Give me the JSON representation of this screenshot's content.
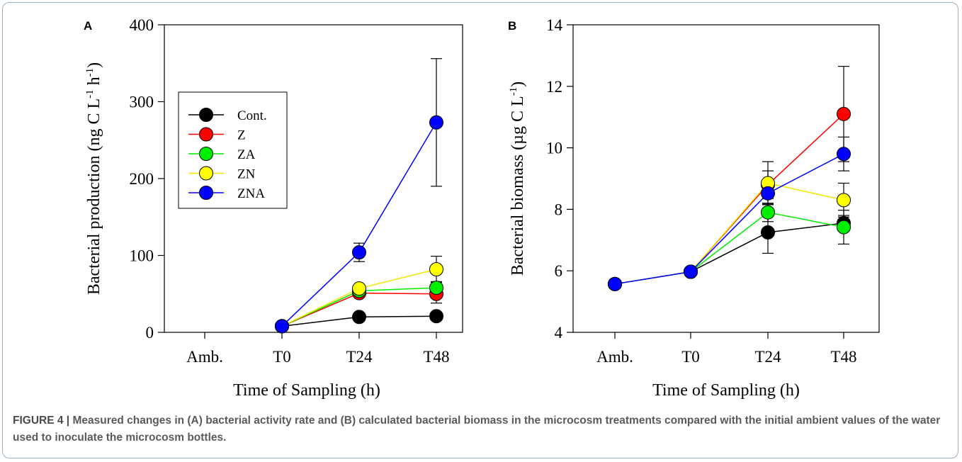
{
  "figure": {
    "caption_label": "FIGURE 4 |",
    "caption_text": "Measured changes in (A) bacterial activity rate and (B) calculated bacterial biomass in the microcosm treatments compared with the initial ambient values of the water used to inoculate the microcosm bottles."
  },
  "chart_data": [
    {
      "panel": "A",
      "type": "line",
      "categories": [
        "Amb.",
        "T0",
        "T24",
        "T48"
      ],
      "xlabel": "Time of Sampling (h)",
      "ylabel": "Bacterial production (ng C L-1 h-1)",
      "ylim": [
        0,
        400
      ],
      "yticks": [
        0,
        100,
        200,
        300,
        400
      ],
      "legend": "top-left",
      "series": [
        {
          "name": "Cont.",
          "color": "#000000",
          "values": [
            null,
            8,
            20,
            21
          ],
          "err": [
            null,
            0,
            3,
            3
          ]
        },
        {
          "name": "Z",
          "color": "#ff0000",
          "values": [
            null,
            8,
            51,
            50
          ],
          "err": [
            null,
            0,
            3,
            12
          ]
        },
        {
          "name": "ZA",
          "color": "#00ee00",
          "values": [
            null,
            8,
            54,
            58
          ],
          "err": [
            null,
            0,
            3,
            8
          ]
        },
        {
          "name": "ZN",
          "color": "#ffff00",
          "values": [
            null,
            8,
            57,
            82
          ],
          "err": [
            null,
            0,
            3,
            17
          ]
        },
        {
          "name": "ZNA",
          "color": "#0000ff",
          "values": [
            null,
            8,
            104,
            273
          ],
          "err": [
            null,
            0,
            12,
            83
          ]
        }
      ]
    },
    {
      "panel": "B",
      "type": "line",
      "categories": [
        "Amb.",
        "T0",
        "T24",
        "T48"
      ],
      "xlabel": "Time of Sampling (h)",
      "ylabel": "Bacterial biomass (µg C L-1)",
      "ylim": [
        4,
        14
      ],
      "yticks": [
        4,
        6,
        8,
        10,
        12,
        14
      ],
      "series": [
        {
          "name": "Cont.",
          "color": "#000000",
          "values": [
            5.57,
            5.97,
            7.25,
            7.55
          ],
          "err": [
            0,
            0,
            0.68,
            0.25
          ]
        },
        {
          "name": "Z",
          "color": "#ff0000",
          "values": [
            5.57,
            5.97,
            8.8,
            11.1
          ],
          "err": [
            0,
            0,
            0.45,
            1.55
          ]
        },
        {
          "name": "ZA",
          "color": "#00ee00",
          "values": [
            5.57,
            5.97,
            7.9,
            7.42
          ],
          "err": [
            0,
            0,
            0.3,
            0.55
          ]
        },
        {
          "name": "ZN",
          "color": "#ffff00",
          "values": [
            5.57,
            5.97,
            8.85,
            8.3
          ],
          "err": [
            0,
            0,
            0.7,
            0.55
          ]
        },
        {
          "name": "ZNA",
          "color": "#0000ff",
          "values": [
            5.57,
            5.97,
            8.52,
            9.8
          ],
          "err": [
            0,
            0,
            0.35,
            0.55
          ]
        }
      ]
    }
  ]
}
